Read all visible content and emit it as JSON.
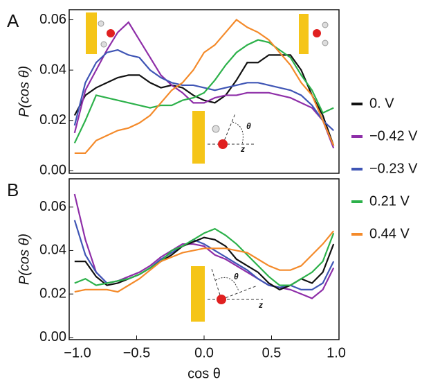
{
  "chart_data": [
    {
      "type": "line",
      "panel_label": "A",
      "y_label": "P(cos θ)",
      "inset_labels": [
        "θ",
        "z"
      ],
      "x": [
        -0.96,
        -0.88,
        -0.8,
        -0.72,
        -0.64,
        -0.56,
        -0.48,
        -0.4,
        -0.32,
        -0.24,
        -0.16,
        -0.08,
        0,
        0.08,
        0.16,
        0.24,
        0.32,
        0.4,
        0.48,
        0.56,
        0.64,
        0.72,
        0.8,
        0.88,
        0.96
      ],
      "xlim": [
        -1,
        1
      ],
      "ylim": [
        -0.001,
        0.064
      ],
      "yticks": [
        {
          "value": 0,
          "label": "0.00"
        },
        0.02,
        0.04,
        0.06
      ],
      "series": [
        {
          "name": "0. V",
          "color": "#111111",
          "values": [
            0.022,
            0.03,
            0.033,
            0.035,
            0.037,
            0.038,
            0.038,
            0.035,
            0.033,
            0.034,
            0.033,
            0.03,
            0.028,
            0.027,
            0.03,
            0.036,
            0.043,
            0.043,
            0.046,
            0.046,
            0.046,
            0.04,
            0.03,
            0.022,
            0.01
          ]
        },
        {
          "name": "−0.42 V",
          "color": "#8e2ea8",
          "values": [
            0.015,
            0.032,
            0.04,
            0.048,
            0.055,
            0.059,
            0.052,
            0.045,
            0.038,
            0.034,
            0.031,
            0.027,
            0.027,
            0.029,
            0.03,
            0.03,
            0.031,
            0.031,
            0.031,
            0.03,
            0.029,
            0.027,
            0.025,
            0.02,
            0.009
          ]
        },
        {
          "name": "−0.23 V",
          "color": "#3f55b5",
          "values": [
            0.018,
            0.035,
            0.043,
            0.047,
            0.048,
            0.046,
            0.045,
            0.04,
            0.037,
            0.035,
            0.034,
            0.034,
            0.033,
            0.032,
            0.033,
            0.034,
            0.035,
            0.035,
            0.034,
            0.033,
            0.032,
            0.03,
            0.026,
            0.02,
            0.016
          ]
        },
        {
          "name": "0.21 V",
          "color": "#2cb14a",
          "values": [
            0.011,
            0.02,
            0.03,
            0.029,
            0.028,
            0.027,
            0.026,
            0.025,
            0.026,
            0.026,
            0.028,
            0.029,
            0.031,
            0.036,
            0.042,
            0.047,
            0.05,
            0.052,
            0.051,
            0.048,
            0.045,
            0.038,
            0.032,
            0.023,
            0.025
          ]
        },
        {
          "name": "0.44 V",
          "color": "#f48a2a",
          "values": [
            0.007,
            0.007,
            0.012,
            0.014,
            0.016,
            0.017,
            0.019,
            0.022,
            0.027,
            0.032,
            0.035,
            0.04,
            0.047,
            0.05,
            0.055,
            0.06,
            0.057,
            0.055,
            0.052,
            0.047,
            0.042,
            0.035,
            0.03,
            0.02,
            0.01
          ]
        }
      ]
    },
    {
      "type": "line",
      "panel_label": "B",
      "y_label": "P(cos θ)",
      "x_label": "cos θ",
      "inset_labels": [
        "θ",
        "z"
      ],
      "x": [
        -0.96,
        -0.88,
        -0.8,
        -0.72,
        -0.64,
        -0.56,
        -0.48,
        -0.4,
        -0.32,
        -0.24,
        -0.16,
        -0.08,
        0,
        0.08,
        0.16,
        0.24,
        0.32,
        0.4,
        0.48,
        0.56,
        0.64,
        0.72,
        0.8,
        0.88,
        0.96
      ],
      "xlim": [
        -1,
        1
      ],
      "ylim": [
        -0.001,
        0.073
      ],
      "xticks": [
        {
          "value": -1,
          "label": "−1.0"
        },
        {
          "value": -0.5,
          "label": "−0.5"
        },
        {
          "value": 0,
          "label": "0.0"
        },
        0.5,
        {
          "value": 1,
          "label": "1.0"
        }
      ],
      "yticks": [
        {
          "value": 0,
          "label": "0.00"
        },
        0.02,
        0.04,
        0.06
      ],
      "series": [
        {
          "color": "#8e2ea8",
          "values": [
            0.066,
            0.045,
            0.03,
            0.025,
            0.026,
            0.028,
            0.03,
            0.033,
            0.037,
            0.04,
            0.043,
            0.043,
            0.042,
            0.038,
            0.036,
            0.033,
            0.03,
            0.027,
            0.024,
            0.023,
            0.022,
            0.02,
            0.018,
            0.022,
            0.032
          ]
        },
        {
          "color": "#3f55b5",
          "values": [
            0.054,
            0.038,
            0.03,
            0.025,
            0.026,
            0.027,
            0.029,
            0.032,
            0.036,
            0.039,
            0.042,
            0.045,
            0.043,
            0.04,
            0.037,
            0.034,
            0.031,
            0.027,
            0.024,
            0.023,
            0.024,
            0.022,
            0.022,
            0.025,
            0.035
          ]
        },
        {
          "color": "#111111",
          "values": [
            0.035,
            0.035,
            0.028,
            0.024,
            0.025,
            0.027,
            0.029,
            0.032,
            0.035,
            0.038,
            0.042,
            0.044,
            0.046,
            0.045,
            0.042,
            0.036,
            0.033,
            0.03,
            0.025,
            0.022,
            0.024,
            0.027,
            0.025,
            0.03,
            0.043
          ]
        },
        {
          "color": "#2cb14a",
          "values": [
            0.025,
            0.027,
            0.024,
            0.025,
            0.026,
            0.027,
            0.029,
            0.032,
            0.035,
            0.04,
            0.042,
            0.045,
            0.048,
            0.05,
            0.047,
            0.043,
            0.038,
            0.033,
            0.028,
            0.024,
            0.024,
            0.027,
            0.03,
            0.035,
            0.048
          ]
        },
        {
          "color": "#f48a2a",
          "values": [
            0.021,
            0.022,
            0.022,
            0.022,
            0.021,
            0.024,
            0.027,
            0.031,
            0.035,
            0.037,
            0.039,
            0.04,
            0.041,
            0.041,
            0.041,
            0.04,
            0.039,
            0.036,
            0.033,
            0.031,
            0.031,
            0.033,
            0.038,
            0.043,
            0.049
          ]
        }
      ]
    }
  ]
}
